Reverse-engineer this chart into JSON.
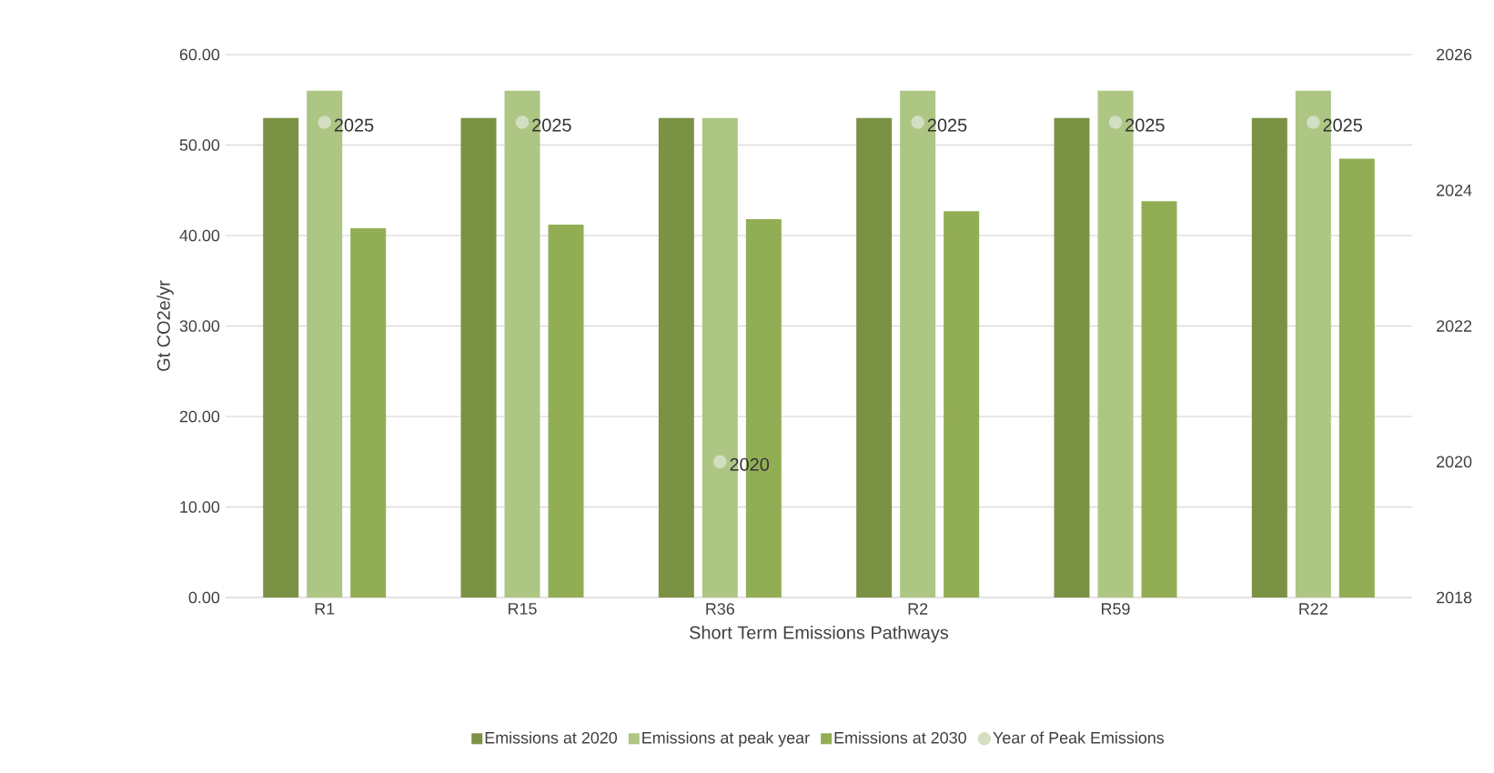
{
  "chart_data": {
    "type": "bar",
    "xlabel": "Short Term Emissions Pathways",
    "ylabel": "Gt CO2e/yr",
    "categories": [
      "R1",
      "R15",
      "R36",
      "R2",
      "R59",
      "R22"
    ],
    "series": [
      {
        "name": "Emissions at 2020",
        "color": "#7b9245",
        "values": [
          53,
          53,
          53,
          53,
          53,
          53
        ]
      },
      {
        "name": "Emissions at peak year",
        "color": "#adc684",
        "values": [
          56,
          56,
          53,
          56,
          56,
          56
        ]
      },
      {
        "name": "Emissions at 2030",
        "color": "#92ae55",
        "values": [
          40.8,
          41.2,
          41.8,
          42.7,
          43.8,
          48.5
        ]
      },
      {
        "name": "Year of Peak Emissions",
        "type": "scatter",
        "axis": "y2",
        "color": "#d3dfc3",
        "marker": "circle",
        "data_labels": true,
        "values": [
          2025,
          2025,
          2020,
          2025,
          2025,
          2025
        ]
      }
    ],
    "ylim": [
      0,
      60
    ],
    "yticks": [
      {
        "value": 0,
        "label": "0.00"
      },
      {
        "value": 10,
        "label": "10.00"
      },
      {
        "value": 20,
        "label": "20.00"
      },
      {
        "value": 30,
        "label": "30.00"
      },
      {
        "value": 40,
        "label": "40.00"
      },
      {
        "value": 50,
        "label": "50.00"
      },
      {
        "value": 60,
        "label": "60.00"
      }
    ],
    "y2lim": [
      2018,
      2026
    ],
    "y2ticks": [
      2018,
      2020,
      2022,
      2024,
      2026
    ],
    "grid": "y",
    "legend": "bottom"
  }
}
